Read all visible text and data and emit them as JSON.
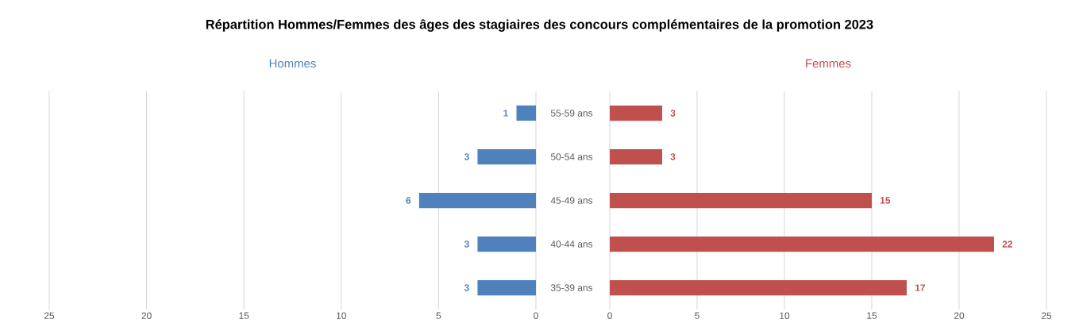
{
  "chart_data": [
    {
      "type": "bar",
      "orientation": "horizontal",
      "title": "Répartition Hommes/Femmes des âges des stagiaires des concours complémentaires de la promotion 2023",
      "categories": [
        null,
        null,
        null,
        null,
        null
      ],
      "series": [
        {
          "name": "Hommes",
          "color": "#4f81bd",
          "values": [
            1,
            3,
            6,
            3,
            3
          ]
        }
      ],
      "xlim": [
        25,
        0
      ],
      "xticks": [
        0,
        5,
        10,
        15,
        20,
        25
      ],
      "grid": "x",
      "data_labels": true,
      "tick_labels": "x"
    },
    {
      "type": "bar",
      "orientation": "horizontal",
      "categories": [
        "55-59 ans",
        "50-54 ans",
        "45-49 ans",
        "40-44 ans",
        "35-39 ans"
      ],
      "series": [
        {
          "name": "Femmes",
          "color": "#c0504d",
          "values": [
            3,
            3,
            15,
            22,
            17
          ]
        }
      ],
      "xlim": [
        0,
        25
      ],
      "xticks": [
        0,
        5,
        10,
        15,
        20,
        25
      ],
      "grid": "x",
      "data_labels": true
    }
  ]
}
